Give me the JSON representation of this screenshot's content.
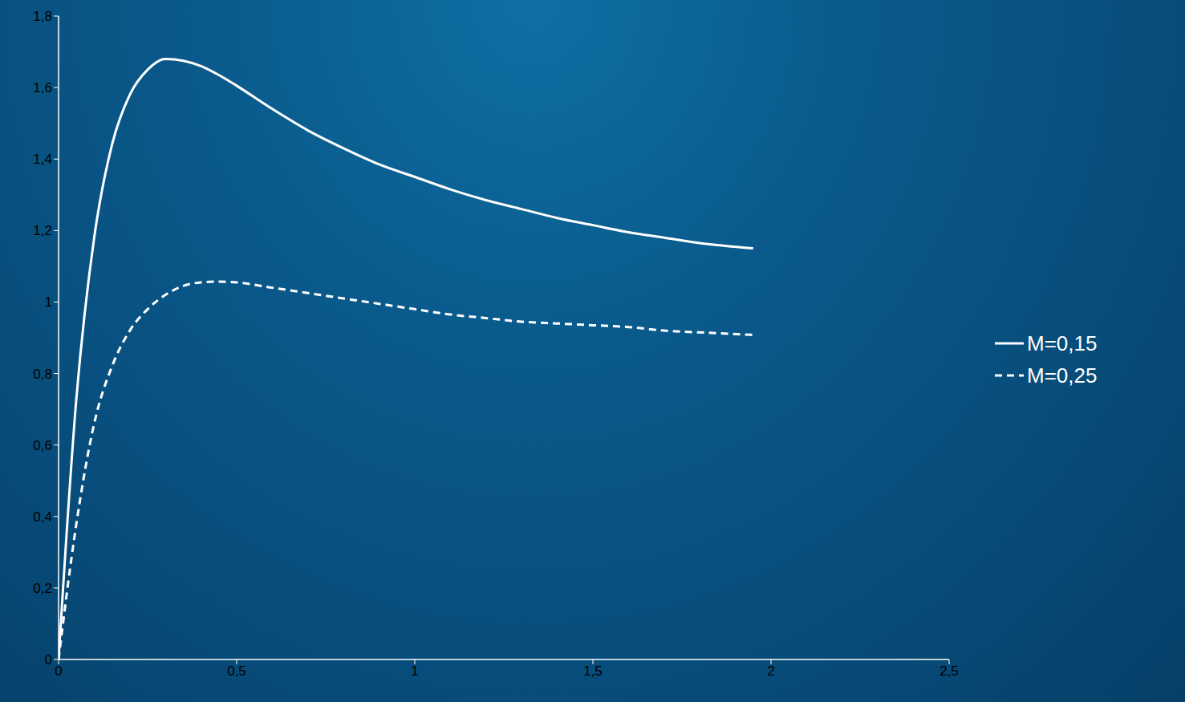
{
  "chart_data": {
    "type": "line",
    "x": [
      0,
      0.05,
      0.1,
      0.15,
      0.2,
      0.25,
      0.3,
      0.35,
      0.4,
      0.45,
      0.5,
      0.6,
      0.7,
      0.8,
      0.9,
      1.0,
      1.1,
      1.2,
      1.3,
      1.4,
      1.5,
      1.6,
      1.7,
      1.8,
      1.95
    ],
    "series": [
      {
        "name": "M=0,15",
        "color": "#ffffff",
        "line_style": "solid",
        "values": [
          0,
          0.73,
          1.18,
          1.44,
          1.58,
          1.65,
          1.68,
          1.675,
          1.66,
          1.635,
          1.605,
          1.54,
          1.48,
          1.43,
          1.385,
          1.35,
          1.315,
          1.285,
          1.26,
          1.235,
          1.215,
          1.195,
          1.18,
          1.165,
          1.15
        ]
      },
      {
        "name": "M=0,25",
        "color": "#ffffff",
        "line_style": "dashed",
        "values": [
          0,
          0.38,
          0.66,
          0.82,
          0.92,
          0.98,
          1.02,
          1.045,
          1.055,
          1.057,
          1.055,
          1.04,
          1.025,
          1.01,
          0.995,
          0.98,
          0.965,
          0.955,
          0.945,
          0.94,
          0.935,
          0.93,
          0.92,
          0.915,
          0.908
        ]
      }
    ],
    "xlim": [
      0,
      2.5
    ],
    "xticks": [
      0,
      {
        "value": 0.5,
        "label": "0,5"
      },
      1,
      {
        "value": 1.5,
        "label": "1,5"
      },
      2,
      {
        "value": 2.5,
        "label": "2,5"
      }
    ],
    "ylim": [
      0,
      1.8
    ],
    "yticks": [
      0,
      {
        "value": 0.2,
        "label": "0,2"
      },
      {
        "value": 0.4,
        "label": "0,4"
      },
      {
        "value": 0.6,
        "label": "0,6"
      },
      {
        "value": 0.8,
        "label": "0,8"
      },
      1,
      {
        "value": 1.2,
        "label": "1,2"
      },
      {
        "value": 1.4,
        "label": "1,4"
      },
      {
        "value": 1.6,
        "label": "1,6"
      },
      {
        "value": 1.8,
        "label": "1,8"
      }
    ],
    "grid": false,
    "legend": "right"
  }
}
